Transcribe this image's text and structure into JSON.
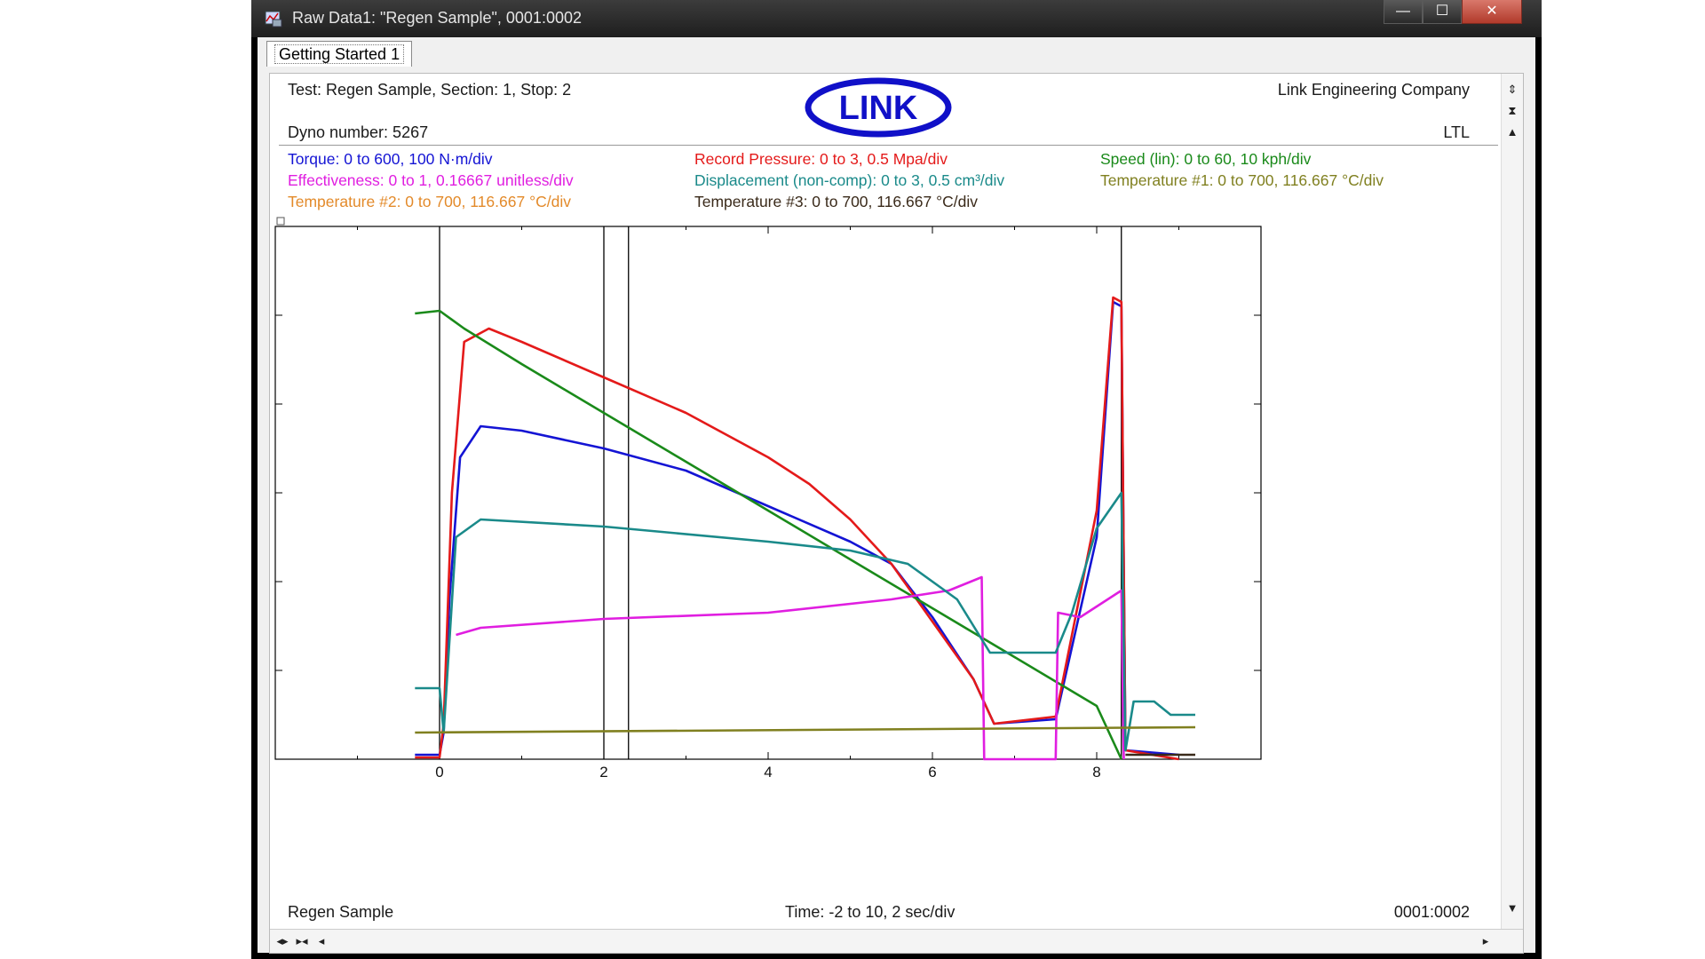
{
  "window": {
    "title": "Raw Data1: \"Regen Sample\", 0001:0002",
    "buttons": {
      "minimize": "—",
      "maximize": "☐",
      "close": "✕"
    }
  },
  "tabs": [
    {
      "label": "Getting Started 1"
    }
  ],
  "header": {
    "test_info": "Test: Regen Sample, Section: 1, Stop: 2",
    "dyno": "Dyno number: 5267",
    "company": "Link Engineering Company",
    "ltl": "LTL",
    "logo_text": "LINK"
  },
  "legend": [
    {
      "text": "Torque: 0 to 600, 100 N·m/div",
      "color": "#1414d4"
    },
    {
      "text": "Record Pressure: 0 to 3, 0.5 Mpa/div",
      "color": "#e41a1a"
    },
    {
      "text": "Speed (lin): 0 to 60, 10 kph/div",
      "color": "#1a8a1a"
    },
    {
      "text": "Effectiveness: 0 to 1, 0.16667 unitless/div",
      "color": "#e01ee0"
    },
    {
      "text": "Displacement (non-comp): 0 to 3, 0.5 cm³/div",
      "color": "#1a8a8a"
    },
    {
      "text": "Temperature #1: 0 to 700, 116.667 °C/div",
      "color": "#808020"
    },
    {
      "text": "Temperature #2: 0 to 700, 116.667 °C/div",
      "color": "#e38a2a"
    },
    {
      "text": "Temperature #3: 0 to 700, 116.667 °C/div",
      "color": "#3a2a1a"
    }
  ],
  "footer": {
    "sample_name": "Regen Sample",
    "time_axis": "Time: -2 to 10, 2 sec/div",
    "stop_id": "0001:0002"
  },
  "chart_data": {
    "type": "line",
    "x_ticks": [
      "0",
      "2",
      "4",
      "6",
      "8"
    ],
    "xlim": [
      -2,
      10
    ],
    "ylim_div": [
      0,
      6
    ],
    "cursor_lines_x": [
      0,
      2,
      2.3,
      8.3
    ],
    "series": [
      {
        "name": "Torque",
        "color": "#1414d4",
        "unit": "div",
        "points": [
          [
            -0.3,
            0.05
          ],
          [
            0,
            0.05
          ],
          [
            0.05,
            0.3
          ],
          [
            0.12,
            1.8
          ],
          [
            0.25,
            3.4
          ],
          [
            0.5,
            3.75
          ],
          [
            1,
            3.7
          ],
          [
            2,
            3.5
          ],
          [
            3,
            3.25
          ],
          [
            4,
            2.85
          ],
          [
            5,
            2.45
          ],
          [
            5.5,
            2.2
          ],
          [
            6,
            1.6
          ],
          [
            6.5,
            0.9
          ],
          [
            6.75,
            0.4
          ],
          [
            7.5,
            0.45
          ],
          [
            8,
            2.5
          ],
          [
            8.2,
            5.15
          ],
          [
            8.3,
            5.1
          ],
          [
            8.35,
            0.1
          ],
          [
            9,
            0.05
          ]
        ]
      },
      {
        "name": "Record Pressure",
        "color": "#e41a1a",
        "unit": "div",
        "points": [
          [
            -0.3,
            0.02
          ],
          [
            0,
            0.02
          ],
          [
            0.05,
            0.4
          ],
          [
            0.15,
            3.0
          ],
          [
            0.3,
            4.7
          ],
          [
            0.6,
            4.85
          ],
          [
            1,
            4.7
          ],
          [
            2,
            4.3
          ],
          [
            3,
            3.9
          ],
          [
            4,
            3.4
          ],
          [
            4.5,
            3.1
          ],
          [
            5,
            2.7
          ],
          [
            5.5,
            2.2
          ],
          [
            6,
            1.55
          ],
          [
            6.5,
            0.9
          ],
          [
            6.75,
            0.4
          ],
          [
            7.5,
            0.48
          ],
          [
            8,
            2.8
          ],
          [
            8.2,
            5.2
          ],
          [
            8.3,
            5.15
          ],
          [
            8.35,
            0.1
          ],
          [
            9,
            0.0
          ]
        ]
      },
      {
        "name": "Speed (lin)",
        "color": "#1a8a1a",
        "unit": "div",
        "points": [
          [
            -0.3,
            5.02
          ],
          [
            0,
            5.05
          ],
          [
            0.3,
            4.85
          ],
          [
            1,
            4.45
          ],
          [
            2,
            3.9
          ],
          [
            3,
            3.35
          ],
          [
            4,
            2.8
          ],
          [
            5,
            2.25
          ],
          [
            6,
            1.7
          ],
          [
            7,
            1.15
          ],
          [
            8,
            0.6
          ],
          [
            8.3,
            0.0
          ]
        ]
      },
      {
        "name": "Effectiveness",
        "color": "#e01ee0",
        "unit": "div",
        "points": [
          [
            0.2,
            1.4
          ],
          [
            0.5,
            1.48
          ],
          [
            2,
            1.58
          ],
          [
            4,
            1.65
          ],
          [
            5.5,
            1.8
          ],
          [
            6.2,
            1.9
          ],
          [
            6.6,
            2.05
          ],
          [
            6.63,
            0.0
          ],
          [
            7.5,
            0.0
          ],
          [
            7.53,
            1.65
          ],
          [
            7.8,
            1.6
          ],
          [
            8.3,
            1.9
          ],
          [
            8.33,
            0.0
          ]
        ]
      },
      {
        "name": "Displacement (non-comp)",
        "color": "#1a8a8a",
        "unit": "div",
        "points": [
          [
            -0.3,
            0.8
          ],
          [
            0,
            0.8
          ],
          [
            0.05,
            0.3
          ],
          [
            0.2,
            2.5
          ],
          [
            0.5,
            2.7
          ],
          [
            2,
            2.62
          ],
          [
            4,
            2.45
          ],
          [
            5,
            2.35
          ],
          [
            5.7,
            2.2
          ],
          [
            6.3,
            1.8
          ],
          [
            6.7,
            1.2
          ],
          [
            7.5,
            1.2
          ],
          [
            7.7,
            1.65
          ],
          [
            8,
            2.6
          ],
          [
            8.3,
            3.0
          ],
          [
            8.35,
            0.1
          ],
          [
            8.45,
            0.65
          ],
          [
            8.7,
            0.65
          ],
          [
            8.9,
            0.5
          ],
          [
            9.2,
            0.5
          ]
        ]
      },
      {
        "name": "Temperature #1",
        "color": "#808020",
        "unit": "div",
        "points": [
          [
            -0.3,
            0.3
          ],
          [
            9.2,
            0.36
          ]
        ]
      },
      {
        "name": "Temperature #3",
        "color": "#3a2a1a",
        "unit": "div",
        "points": [
          [
            8.35,
            0.05
          ],
          [
            9.2,
            0.05
          ]
        ]
      }
    ]
  }
}
